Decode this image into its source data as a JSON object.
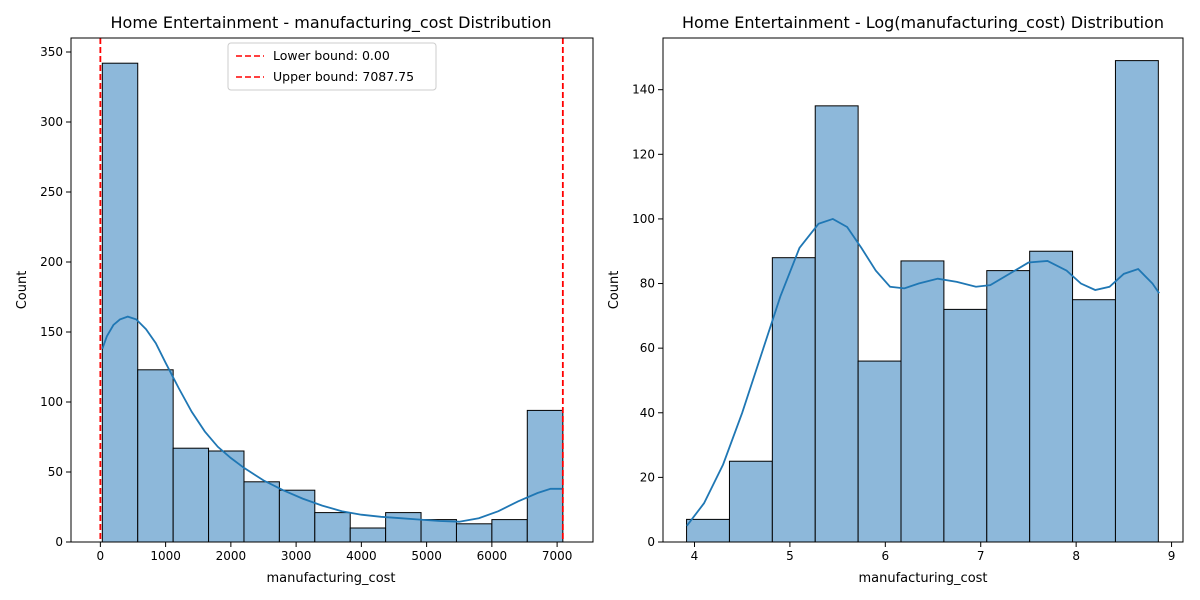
{
  "chart_data": [
    {
      "type": "bar",
      "title": "Home Entertainment - manufacturing_cost Distribution",
      "xlabel": "manufacturing_cost",
      "ylabel": "Count",
      "xlim": [
        -450,
        7550
      ],
      "ylim": [
        0,
        360
      ],
      "xticks": [
        0,
        1000,
        2000,
        3000,
        4000,
        5000,
        6000,
        7000
      ],
      "yticks": [
        0,
        50,
        100,
        150,
        200,
        250,
        300,
        350
      ],
      "bin_edges": [
        30,
        572.75,
        1115.5,
        1658.25,
        2201,
        2743.75,
        3286.5,
        3829.25,
        4372,
        4914.75,
        5457.5,
        6000.25,
        6543,
        7087.75
      ],
      "values": [
        342,
        123,
        67,
        65,
        43,
        37,
        21,
        10,
        21,
        16,
        13,
        16,
        94
      ],
      "kde": [
        [
          30,
          138
        ],
        [
          100,
          147
        ],
        [
          200,
          155
        ],
        [
          300,
          159
        ],
        [
          420,
          161
        ],
        [
          550,
          159
        ],
        [
          700,
          152
        ],
        [
          850,
          142
        ],
        [
          1000,
          128
        ],
        [
          1200,
          110
        ],
        [
          1400,
          93
        ],
        [
          1600,
          79
        ],
        [
          1800,
          68
        ],
        [
          2000,
          60
        ],
        [
          2200,
          53
        ],
        [
          2500,
          44
        ],
        [
          2800,
          37
        ],
        [
          3100,
          31
        ],
        [
          3400,
          26
        ],
        [
          3700,
          22
        ],
        [
          4000,
          19.5
        ],
        [
          4300,
          18
        ],
        [
          4600,
          17
        ],
        [
          4900,
          16
        ],
        [
          5200,
          15
        ],
        [
          5500,
          14.5
        ],
        [
          5800,
          17
        ],
        [
          6100,
          22
        ],
        [
          6400,
          29
        ],
        [
          6700,
          35
        ],
        [
          6900,
          38
        ],
        [
          7087,
          38
        ]
      ],
      "lines": [
        {
          "label": "Lower bound: 0.00",
          "x": 0,
          "color": "#ff0000"
        },
        {
          "label": "Upper bound: 7087.75",
          "x": 7087.75,
          "color": "#ff0000"
        }
      ],
      "legend_position": "top-center",
      "bar_color": "#8db8da",
      "kde_color": "#1f77b4"
    },
    {
      "type": "bar",
      "title": "Home Entertainment - Log(manufacturing_cost) Distribution",
      "xlabel": "manufacturing_cost",
      "ylabel": "Count",
      "xlim": [
        3.67,
        9.12
      ],
      "ylim": [
        0,
        156
      ],
      "xticks": [
        4,
        5,
        6,
        7,
        8,
        9
      ],
      "yticks": [
        0,
        20,
        40,
        60,
        80,
        100,
        120,
        140
      ],
      "bin_edges": [
        3.917,
        4.3665,
        4.816,
        5.2655,
        5.715,
        6.1645,
        6.614,
        7.0635,
        7.513,
        7.9625,
        8.412,
        8.8615
      ],
      "values": [
        7,
        25,
        88,
        135,
        56,
        87,
        72,
        84,
        90,
        75,
        149
      ],
      "kde": [
        [
          3.92,
          5
        ],
        [
          4.1,
          12
        ],
        [
          4.3,
          24
        ],
        [
          4.5,
          40
        ],
        [
          4.7,
          58
        ],
        [
          4.9,
          76
        ],
        [
          5.1,
          91
        ],
        [
          5.3,
          98.5
        ],
        [
          5.45,
          100
        ],
        [
          5.6,
          97.5
        ],
        [
          5.75,
          91
        ],
        [
          5.9,
          84
        ],
        [
          6.05,
          79
        ],
        [
          6.2,
          78.5
        ],
        [
          6.35,
          80
        ],
        [
          6.55,
          81.5
        ],
        [
          6.75,
          80.5
        ],
        [
          6.95,
          79
        ],
        [
          7.1,
          79.5
        ],
        [
          7.3,
          83
        ],
        [
          7.5,
          86.5
        ],
        [
          7.7,
          87
        ],
        [
          7.9,
          84
        ],
        [
          8.05,
          80
        ],
        [
          8.2,
          78
        ],
        [
          8.35,
          79
        ],
        [
          8.5,
          83
        ],
        [
          8.65,
          84.5
        ],
        [
          8.8,
          80
        ],
        [
          8.87,
          77
        ]
      ],
      "bar_color": "#8db8da",
      "kde_color": "#1f77b4"
    }
  ]
}
